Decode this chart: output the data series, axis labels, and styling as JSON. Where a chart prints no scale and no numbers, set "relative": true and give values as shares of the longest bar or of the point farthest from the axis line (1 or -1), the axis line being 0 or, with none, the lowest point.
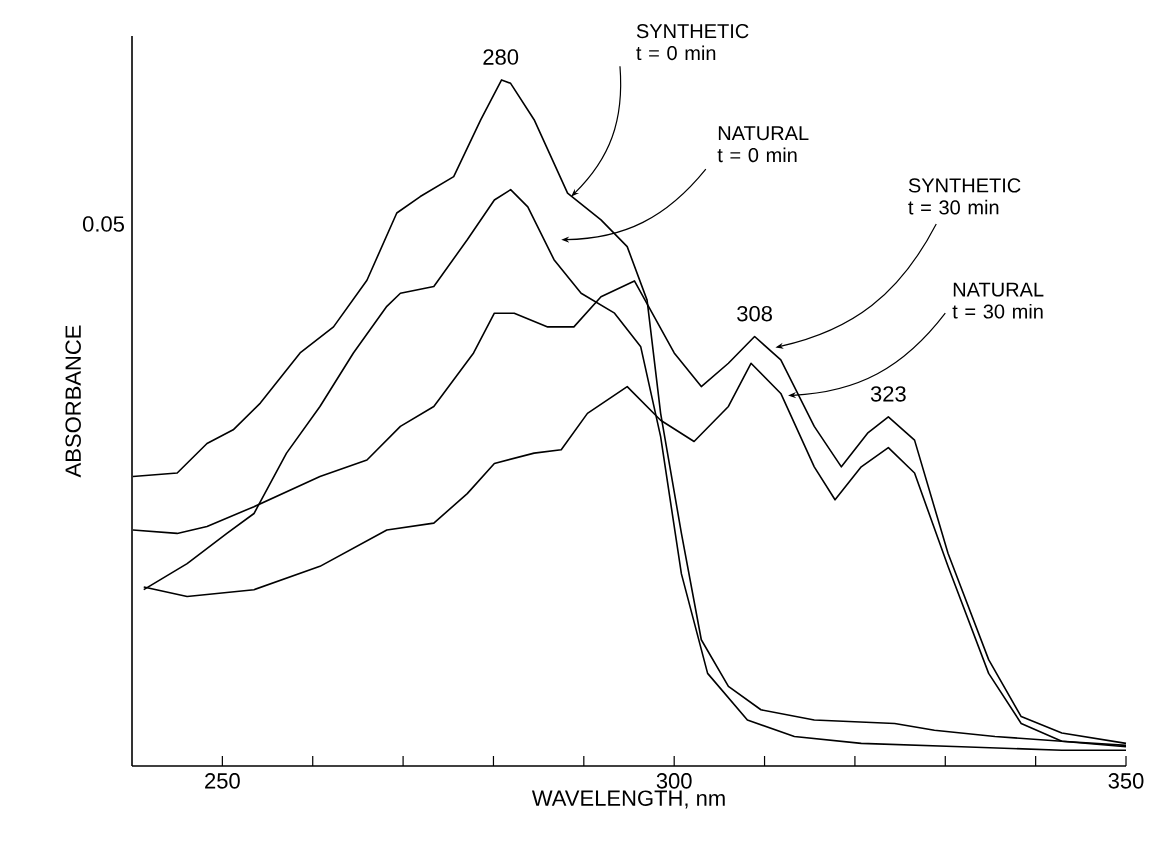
{
  "chart_data": {
    "type": "line",
    "relative": true,
    "xlabel": "WAVELENGTH, nm",
    "ylabel": "ABSORBANCE",
    "xlim": [
      240,
      350
    ],
    "xticks": [
      250,
      {
        "value": 260,
        "label": null
      },
      {
        "value": 270,
        "label": null
      },
      {
        "value": 280,
        "label": null
      },
      {
        "value": 290,
        "label": null
      },
      300,
      {
        "value": 310,
        "label": null
      },
      {
        "value": 320,
        "label": null
      },
      {
        "value": 330,
        "label": null
      },
      {
        "value": 340,
        "label": null
      },
      350
    ],
    "grid": false,
    "marker": "none",
    "line_style": "solid",
    "series": [
      {
        "name": "SYNTHETIC t = 0 min",
        "color": "#000000",
        "x": [
          240.1,
          245,
          248.3,
          251.2,
          254.2,
          258.6,
          262.3,
          266,
          269.3,
          271.9,
          275.6,
          278.6,
          280.9,
          281.9,
          284.5,
          288.2,
          291.9,
          294.8,
          297,
          298.5,
          300.8,
          303,
          306,
          309.6,
          315.5,
          324.4,
          328.8,
          335.5,
          342.9,
          350
        ],
        "values": [
          0.422,
          0.427,
          0.47,
          0.49,
          0.529,
          0.602,
          0.64,
          0.708,
          0.806,
          0.83,
          0.859,
          0.942,
          1,
          0.995,
          0.942,
          0.835,
          0.796,
          0.757,
          0.679,
          0.514,
          0.339,
          0.184,
          0.116,
          0.082,
          0.067,
          0.062,
          0.052,
          0.043,
          0.036,
          0.03
        ]
      },
      {
        "name": "NATURAL t = 0 min",
        "color": "#000000",
        "x": [
          241.3,
          246.1,
          250.5,
          253.5,
          257.1,
          260.8,
          264.5,
          268.2,
          269.7,
          273.4,
          277.1,
          280.1,
          281.9,
          283.8,
          286.7,
          289.7,
          293.4,
          296.3,
          298.5,
          300.8,
          303.7,
          308.1,
          313.3,
          320.7,
          331.8,
          342.9,
          350
        ],
        "values": [
          0.257,
          0.295,
          0.339,
          0.368,
          0.456,
          0.524,
          0.602,
          0.67,
          0.689,
          0.699,
          0.767,
          0.825,
          0.84,
          0.815,
          0.738,
          0.689,
          0.66,
          0.611,
          0.48,
          0.28,
          0.135,
          0.067,
          0.043,
          0.033,
          0.028,
          0.023,
          0.023
        ]
      },
      {
        "name": "SYNTHETIC t = 30 min",
        "color": "#000000",
        "x": [
          240.1,
          245,
          248.3,
          253.5,
          260.8,
          266,
          269.7,
          273.4,
          277.8,
          280.1,
          282.3,
          286,
          288.9,
          291.9,
          295.6,
          300,
          303,
          306,
          308.9,
          311.8,
          315.5,
          318.5,
          321.4,
          323.7,
          326.6,
          330.3,
          334.8,
          338.4,
          342.9,
          350
        ],
        "values": [
          0.344,
          0.339,
          0.349,
          0.378,
          0.422,
          0.446,
          0.495,
          0.524,
          0.602,
          0.66,
          0.66,
          0.64,
          0.64,
          0.684,
          0.707,
          0.602,
          0.553,
          0.587,
          0.626,
          0.592,
          0.495,
          0.436,
          0.485,
          0.509,
          0.475,
          0.31,
          0.155,
          0.072,
          0.048,
          0.033
        ]
      },
      {
        "name": "NATURAL t = 30 min",
        "color": "#000000",
        "x": [
          241.3,
          246.1,
          253.5,
          260.8,
          268.2,
          273.4,
          277.1,
          280.1,
          284.5,
          287.5,
          290.4,
          294.8,
          298.5,
          302.2,
          306,
          308.5,
          311.8,
          315.5,
          317.8,
          320.7,
          323.7,
          326.6,
          330.3,
          334.8,
          338.4,
          342.9,
          350
        ],
        "values": [
          0.261,
          0.247,
          0.257,
          0.291,
          0.344,
          0.354,
          0.397,
          0.441,
          0.456,
          0.461,
          0.514,
          0.553,
          0.504,
          0.473,
          0.524,
          0.587,
          0.543,
          0.436,
          0.388,
          0.436,
          0.464,
          0.427,
          0.291,
          0.135,
          0.062,
          0.036,
          0.028
        ]
      }
    ],
    "annotations": [
      {
        "text": "280",
        "x": 280.8,
        "y": 1
      },
      {
        "text": "308",
        "x": 308.9,
        "y": 0.626
      },
      {
        "text": "323",
        "x": 323.7,
        "y": 0.509
      },
      "0.05"
    ]
  }
}
